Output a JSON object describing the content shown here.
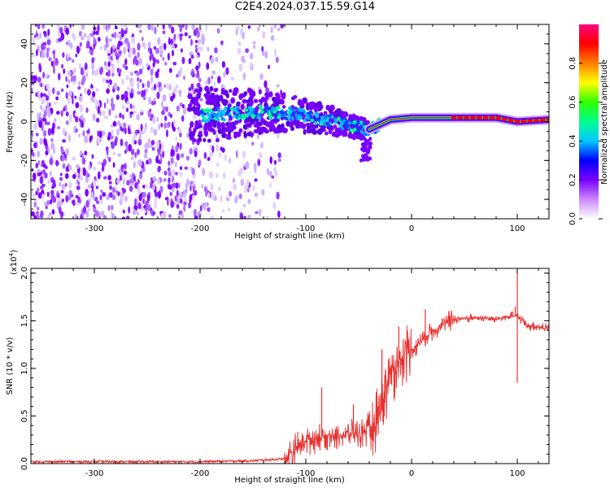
{
  "title": "C2E4.2024.037.15.59.G14",
  "chart_data": [
    {
      "type": "heatmap",
      "xlabel": "Height of straight line (km)",
      "ylabel": "Frequency (Hz)",
      "xlim": [
        -360,
        130
      ],
      "ylim": [
        -50,
        50
      ],
      "xticks": [
        -300,
        -200,
        -100,
        0,
        100
      ],
      "yticks": [
        -40,
        -20,
        0,
        20,
        40
      ],
      "colorbar": {
        "label": "Normalized spectral amplitude",
        "range": [
          0,
          1
        ],
        "ticks": [
          "0.0",
          "0.2",
          "0.4",
          "0.6",
          "0.8"
        ],
        "colors": [
          "#ffffff",
          "#cc88ff",
          "#7a00ff",
          "#0000ff",
          "#00c8ff",
          "#00ff90",
          "#30ff00",
          "#ffff00",
          "#ff8000",
          "#ff0000",
          "#ff0080"
        ]
      },
      "ridge": [
        {
          "x": -200,
          "y": 3
        },
        {
          "x": -150,
          "y": 5
        },
        {
          "x": -110,
          "y": 4
        },
        {
          "x": -80,
          "y": 1
        },
        {
          "x": -50,
          "y": -3
        },
        {
          "x": -40,
          "y": -4
        },
        {
          "x": -20,
          "y": 1
        },
        {
          "x": 0,
          "y": 2
        },
        {
          "x": 40,
          "y": 2
        },
        {
          "x": 80,
          "y": 2
        },
        {
          "x": 100,
          "y": 0
        },
        {
          "x": 130,
          "y": 1
        }
      ]
    },
    {
      "type": "line",
      "xlabel": "Height of straight line (km)",
      "ylabel": "SNR (10 * v/v)",
      "multiplier": "(x10",
      "multiplier_exp": "4",
      "multiplier_close": ")",
      "xlim": [
        -360,
        130
      ],
      "ylim": [
        0,
        2.05
      ],
      "xticks": [
        -300,
        -200,
        -100,
        0,
        100
      ],
      "yticks": [
        "0.0",
        "0.5",
        "1.0",
        "1.5",
        "2.0"
      ],
      "series": [
        {
          "color": "#e8302f",
          "envelope": [
            {
              "x": -360,
              "y": 0.02
            },
            {
              "x": -200,
              "y": 0.02
            },
            {
              "x": -150,
              "y": 0.03
            },
            {
              "x": -120,
              "y": 0.05
            },
            {
              "x": -100,
              "y": 0.25
            },
            {
              "x": -80,
              "y": 0.3
            },
            {
              "x": -60,
              "y": 0.3
            },
            {
              "x": -40,
              "y": 0.35
            },
            {
              "x": -30,
              "y": 0.6
            },
            {
              "x": -20,
              "y": 0.95
            },
            {
              "x": -10,
              "y": 1.1
            },
            {
              "x": 0,
              "y": 1.2
            },
            {
              "x": 20,
              "y": 1.4
            },
            {
              "x": 40,
              "y": 1.52
            },
            {
              "x": 60,
              "y": 1.53
            },
            {
              "x": 80,
              "y": 1.52
            },
            {
              "x": 95,
              "y": 1.55
            },
            {
              "x": 100,
              "y": 1.55
            },
            {
              "x": 110,
              "y": 1.45
            },
            {
              "x": 130,
              "y": 1.42
            }
          ],
          "spikes": [
            {
              "x": 100,
              "y": 2.03
            },
            {
              "x": 100,
              "y": 0.85
            },
            {
              "x": 98,
              "y": 1.65
            },
            {
              "x": 13,
              "y": 1.62
            },
            {
              "x": -12,
              "y": 1.44
            },
            {
              "x": -28,
              "y": 1.2
            },
            {
              "x": -85,
              "y": 0.8
            },
            {
              "x": -55,
              "y": 0.62
            }
          ]
        }
      ]
    }
  ]
}
